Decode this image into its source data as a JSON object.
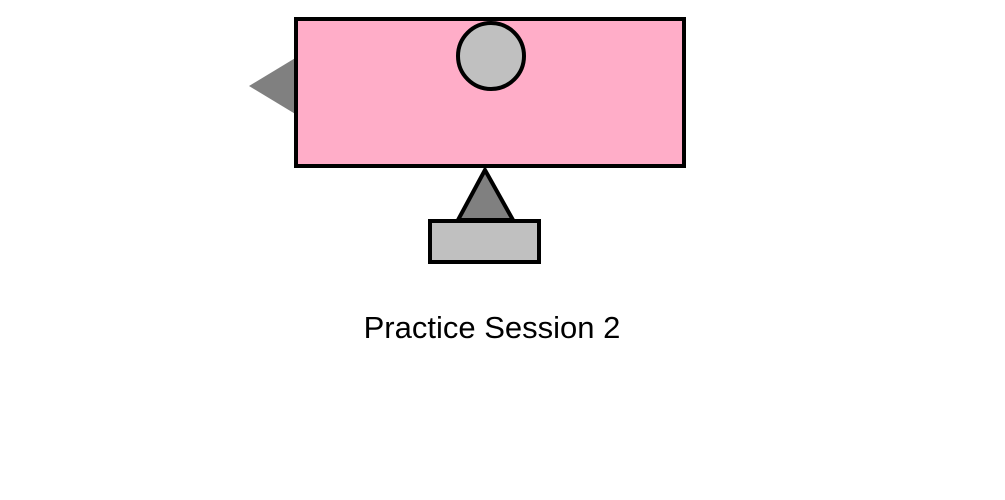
{
  "session": {
    "label": "Practice Session 2"
  },
  "colors": {
    "background": "#ffffff",
    "panel_fill": "#ffadc8",
    "outline": "#000000",
    "dark_gray": "#808080",
    "light_gray": "#c0c0c0"
  },
  "icons": {
    "left_pointer": "triangle-left-icon",
    "top_circle": "circle-icon",
    "stand_triangle": "triangle-up-icon",
    "stand_base": "rectangle-base-icon"
  }
}
